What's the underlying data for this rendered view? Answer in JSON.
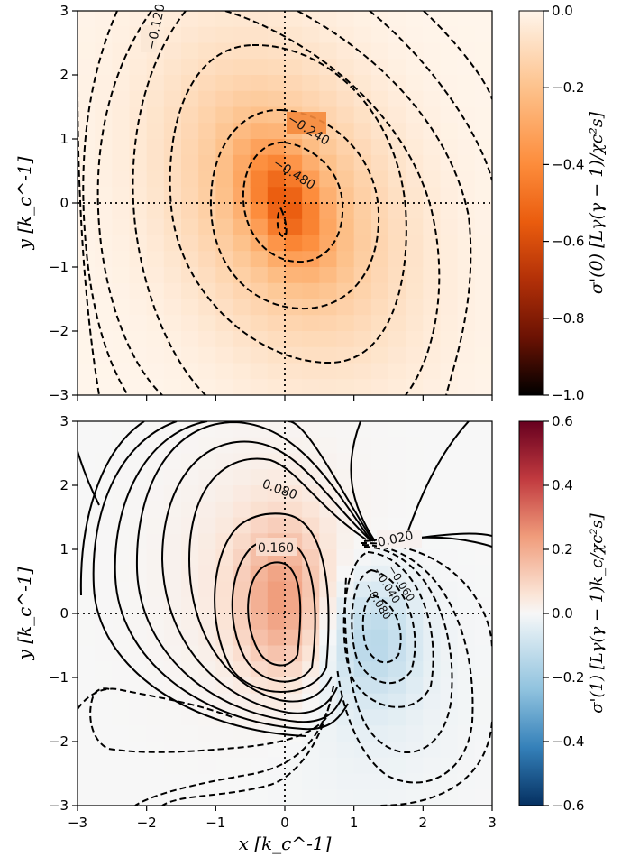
{
  "chart_data": [
    {
      "type": "heatmap",
      "title": "",
      "xlabel": "",
      "ylabel": "y [k_c^-1]",
      "xlim": [
        -3,
        3
      ],
      "ylim": [
        -3,
        3
      ],
      "xticks": [
        -3,
        -2,
        -1,
        0,
        1,
        2,
        3
      ],
      "yticks": [
        -3,
        -2,
        -1,
        0,
        1,
        2,
        3
      ],
      "show_xticklabels": false,
      "colormap": "Oranges_r",
      "colorbar_range": [
        -1.0,
        0.0
      ],
      "colorbar_ticks": [
        "0.0",
        "−0.2",
        "−0.4",
        "−0.6",
        "−0.8",
        "−1.0"
      ],
      "colorbar_label": "σ'(0) [Lγ(γ − 1)/χc²s]",
      "contour_style": "dashed",
      "contour_labels": [
        "−0.120",
        "−0.240",
        "−0.480"
      ],
      "min_value_location": [
        0.0,
        -0.2
      ],
      "min_value": -0.55,
      "reference_lines": {
        "x": 0,
        "y": 0,
        "style": "dotted"
      }
    },
    {
      "type": "heatmap",
      "title": "",
      "xlabel": "x [k_c^-1]",
      "ylabel": "y [k_c^-1]",
      "xlim": [
        -3,
        3
      ],
      "ylim": [
        -3,
        3
      ],
      "xticks": [
        -3,
        -2,
        -1,
        0,
        1,
        2,
        3
      ],
      "yticks": [
        -3,
        -2,
        -1,
        0,
        1,
        2,
        3
      ],
      "show_xticklabels": true,
      "colormap": "RdBu_r",
      "colorbar_range": [
        -0.6,
        0.6
      ],
      "colorbar_ticks": [
        "0.6",
        "0.4",
        "0.2",
        "0.0",
        "−0.2",
        "−0.4",
        "−0.6"
      ],
      "colorbar_label": "σ'(1) [Lγ(γ − 1)k_c/χc²s]",
      "contour_style": "solid positive, dashed negative",
      "contour_labels": [
        "0.080",
        "0.160",
        "0.020",
        "−0.040",
        "−0.060",
        "−0.080"
      ],
      "max_value_location": [
        0.0,
        0.2
      ],
      "max_value": 0.22,
      "min_value_location": [
        1.3,
        -0.35
      ],
      "min_value": -0.14,
      "reference_lines": {
        "x": 0,
        "y": 0,
        "style": "dotted"
      }
    }
  ]
}
